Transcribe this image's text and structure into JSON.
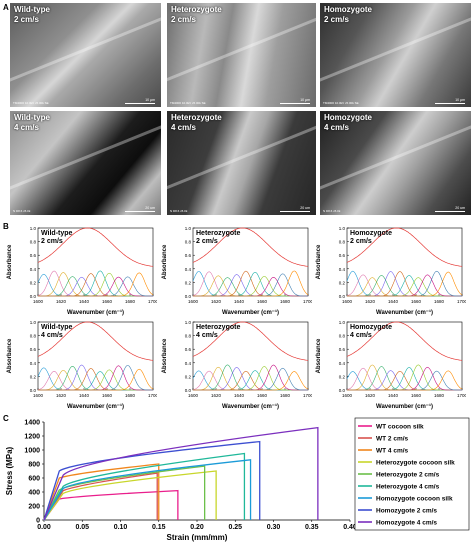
{
  "panel_letters": {
    "a": "A",
    "b": "B",
    "c": "C"
  },
  "sem": [
    {
      "line1": "Wild-type",
      "line2": "2 cm/s",
      "footer": "TM4000 10.0kV x5.00k SE",
      "scale": "10 μm"
    },
    {
      "line1": "Heterozygote",
      "line2": "2 cm/s",
      "footer": "TM4000 10.0kV x5.00k SE",
      "scale": "10 μm"
    },
    {
      "line1": "Homozygote",
      "line2": "2 cm/s",
      "footer": "TM4000 10.0kV x5.00k SE",
      "scale": "10 μm"
    },
    {
      "line1": "Wild-type",
      "line2": "4 cm/s",
      "footer": "N D8.6 x5.0k",
      "scale": "20 um"
    },
    {
      "line1": "Heterozygote",
      "line2": "4 cm/s",
      "footer": "N D8.6 x5.0k",
      "scale": "20 um"
    },
    {
      "line1": "Homozygote",
      "line2": "4 cm/s",
      "footer": "N D8.6 x5.0k",
      "scale": "20 um"
    }
  ],
  "ftir": {
    "ylabel": "Absorbance",
    "xlabel": "Wavenumber (cm⁻¹)",
    "yticks": [
      "0.0",
      "0.2",
      "0.4",
      "0.6",
      "0.8",
      "1.0"
    ],
    "xticks": [
      "1600",
      "1620",
      "1640",
      "1660",
      "1680",
      "1700"
    ],
    "panels": [
      {
        "line1": "Wild-type",
        "line2": "2 cm/s"
      },
      {
        "line1": "Heterozygote",
        "line2": "2 cm/s"
      },
      {
        "line1": "Homozygote",
        "line2": "2 cm/s"
      },
      {
        "line1": "Wild-type",
        "line2": "4 cm/s"
      },
      {
        "line1": "Heterozygote",
        "line2": "4 cm/s"
      },
      {
        "line1": "Homozygote",
        "line2": "4 cm/s"
      }
    ],
    "peak_colors": [
      "#2b9fd9",
      "#e07bb0",
      "#e0b030",
      "#3cb371",
      "#7b68ee",
      "#d2691e",
      "#20b2aa",
      "#9acd32",
      "#c71585",
      "#4682b4",
      "#ff8c00"
    ],
    "fit_color": "#e53935"
  },
  "chart_data": {
    "type": "line",
    "title": "",
    "xlabel": "Strain (mm/mm)",
    "ylabel": "Stress (MPa)",
    "xlim": [
      0.0,
      0.4
    ],
    "ylim": [
      0,
      1400
    ],
    "xticks": [
      "0.00",
      "0.05",
      "0.10",
      "0.15",
      "0.20",
      "0.25",
      "0.30",
      "0.35",
      "0.40"
    ],
    "yticks": [
      "0",
      "200",
      "400",
      "600",
      "800",
      "1000",
      "1200",
      "1400"
    ],
    "legend_position": "right",
    "series": [
      {
        "name": "WT cocoon silk",
        "color": "#e91e8c",
        "yield_x": 0.02,
        "yield_y": 300,
        "end_x": 0.175,
        "end_y": 420
      },
      {
        "name": "WT 2 cm/s",
        "color": "#d9534f",
        "yield_x": 0.025,
        "yield_y": 420,
        "end_x": 0.148,
        "end_y": 670
      },
      {
        "name": "WT 4 cm/s",
        "color": "#f0861d",
        "yield_x": 0.02,
        "yield_y": 600,
        "end_x": 0.15,
        "end_y": 800
      },
      {
        "name": "Heterozygote cocoon silk",
        "color": "#c8d62b",
        "yield_x": 0.025,
        "yield_y": 380,
        "end_x": 0.225,
        "end_y": 700
      },
      {
        "name": "Heterozygote 2 cm/s",
        "color": "#6cc04a",
        "yield_x": 0.02,
        "yield_y": 430,
        "end_x": 0.21,
        "end_y": 770
      },
      {
        "name": "Heterozygote 4 cm/s",
        "color": "#1fb89a",
        "yield_x": 0.025,
        "yield_y": 480,
        "end_x": 0.262,
        "end_y": 950
      },
      {
        "name": "Homozygote cocoon silk",
        "color": "#1c9bd8",
        "yield_x": 0.025,
        "yield_y": 450,
        "end_x": 0.27,
        "end_y": 860
      },
      {
        "name": "Homozygote 2 cm/s",
        "color": "#3d4fd1",
        "yield_x": 0.02,
        "yield_y": 700,
        "end_x": 0.282,
        "end_y": 1120
      },
      {
        "name": "Homozygote 4 cm/s",
        "color": "#7b2fbe",
        "yield_x": 0.025,
        "yield_y": 640,
        "end_x": 0.358,
        "end_y": 1320
      }
    ]
  }
}
